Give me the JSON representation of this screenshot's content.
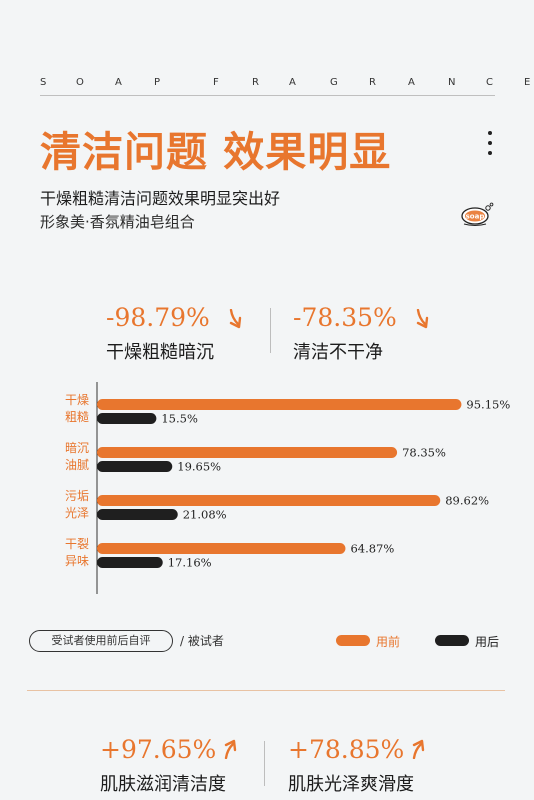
{
  "header": {
    "brand_letters": [
      "S",
      "O",
      "A",
      "P",
      "F",
      "R",
      "A",
      "G",
      "R",
      "A",
      "N",
      "C",
      "E"
    ],
    "headline": "清洁问题 效果明显",
    "subtitle": "干燥粗糙清洁问题效果明显突出好",
    "subtitle2": "形象美·香氛精油皂组合",
    "logo_text": "soap"
  },
  "top_stats": [
    {
      "value": "-98.79%",
      "label": "干燥粗糙暗沉",
      "arrow": "down-arrow-icon"
    },
    {
      "value": "-78.35%",
      "label": "清洁不干净",
      "arrow": "down-arrow-icon"
    }
  ],
  "chart_data": {
    "type": "bar",
    "orientation": "horizontal",
    "categories": [
      "干燥\n粗糙",
      "暗沉\n油腻",
      "污垢\n光泽",
      "干裂\n异味"
    ],
    "category_lines": [
      [
        "干燥",
        "粗糙"
      ],
      [
        "暗沉",
        "油腻"
      ],
      [
        "污垢",
        "光泽"
      ],
      [
        "干裂",
        "异味"
      ]
    ],
    "series": [
      {
        "name": "用前",
        "values": [
          95.15,
          78.35,
          89.62,
          64.87
        ],
        "labels": [
          "95.15%",
          "78.35%",
          "89.62%",
          "64.87%"
        ],
        "color": "#e8762e"
      },
      {
        "name": "用后",
        "values": [
          15.5,
          19.65,
          21.08,
          17.16
        ],
        "labels": [
          "15.5%",
          "19.65%",
          "21.08%",
          "17.16%"
        ],
        "color": "#1f1f1f"
      }
    ],
    "xlim": [
      0,
      100
    ],
    "grid": false,
    "legend": "bottom-right"
  },
  "legend": {
    "pill_text": "受试者使用前后自评",
    "slash_text": "/ 被试者"
  },
  "bottom_stats": [
    {
      "value": "+97.65%",
      "label": "肌肤滋润清洁度",
      "arrow": "up-arrow-icon"
    },
    {
      "value": "+78.85%",
      "label": "肌肤光泽爽滑度",
      "arrow": "up-arrow-icon"
    }
  ],
  "colors": {
    "accent": "#e8762e",
    "dark": "#1f1f1f",
    "background": "#f3f5f6"
  }
}
